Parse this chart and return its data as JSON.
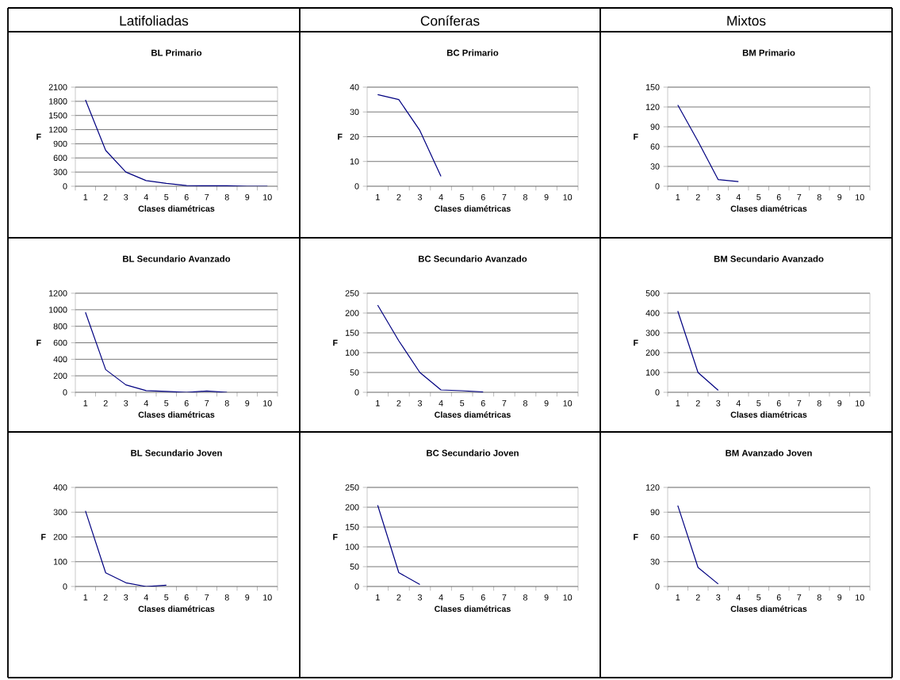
{
  "chart_data": [
    {
      "type": "line",
      "title": "BL Primario",
      "xlabel": "Clases diamétricas",
      "ylabel": "F",
      "annotations": [
        "Latifoliadas"
      ],
      "categories": [
        "1",
        "2",
        "3",
        "4",
        "5",
        "6",
        "7",
        "8",
        "9",
        "10"
      ],
      "series": [
        {
          "color": "#000080",
          "values": [
            1830,
            760,
            300,
            120,
            60,
            15,
            10,
            10,
            0,
            0
          ]
        }
      ],
      "ylim": [
        0,
        2100
      ],
      "yticks": [
        0,
        300,
        600,
        900,
        1200,
        1500,
        1800,
        2100
      ],
      "grid": "y"
    },
    {
      "type": "line",
      "title": "BC Primario",
      "xlabel": "Clases diamétricas",
      "ylabel": "F",
      "annotations": [
        "Coníferas"
      ],
      "categories": [
        "1",
        "2",
        "3",
        "4",
        "5",
        "6",
        "7",
        "8",
        "9",
        "10"
      ],
      "series": [
        {
          "color": "#000080",
          "values": [
            37,
            35,
            22.5,
            4,
            null,
            null,
            null,
            null,
            null,
            null
          ]
        }
      ],
      "ylim": [
        0,
        40
      ],
      "yticks": [
        0,
        10,
        20,
        30,
        40
      ],
      "grid": "y"
    },
    {
      "type": "line",
      "title": "BM Primario",
      "xlabel": "Clases diamétricas",
      "ylabel": "F",
      "annotations": [
        "Mixtos"
      ],
      "categories": [
        "1",
        "2",
        "3",
        "4",
        "5",
        "6",
        "7",
        "8",
        "9",
        "10"
      ],
      "series": [
        {
          "color": "#000080",
          "values": [
            123,
            68,
            10,
            7,
            null,
            null,
            null,
            null,
            null,
            null
          ]
        }
      ],
      "ylim": [
        0,
        150
      ],
      "yticks": [
        0,
        30,
        60,
        90,
        120,
        150
      ],
      "grid": "y"
    },
    {
      "type": "line",
      "title": "BL Secundario Avanzado",
      "xlabel": "Clases diamétricas",
      "ylabel": "F",
      "categories": [
        "1",
        "2",
        "3",
        "4",
        "5",
        "6",
        "7",
        "8",
        "9",
        "10"
      ],
      "series": [
        {
          "color": "#000080",
          "values": [
            970,
            275,
            90,
            20,
            10,
            0,
            15,
            0,
            null,
            null
          ]
        }
      ],
      "ylim": [
        0,
        1200
      ],
      "yticks": [
        0,
        200,
        400,
        600,
        800,
        1000,
        1200
      ],
      "grid": "y"
    },
    {
      "type": "line",
      "title": "BC Secundario Avanzado",
      "xlabel": "Clases diamétricas",
      "ylabel": "F",
      "categories": [
        "1",
        "2",
        "3",
        "4",
        "5",
        "6",
        "7",
        "8",
        "9",
        "10"
      ],
      "series": [
        {
          "color": "#000080",
          "values": [
            220,
            130,
            50,
            6,
            4,
            1,
            null,
            null,
            null,
            null
          ]
        }
      ],
      "ylim": [
        0,
        250
      ],
      "yticks": [
        0,
        50,
        100,
        150,
        200,
        250
      ],
      "grid": "y"
    },
    {
      "type": "line",
      "title": "BM Secundario Avanzado",
      "xlabel": "Clases diamétricas",
      "ylabel": "F",
      "categories": [
        "1",
        "2",
        "3",
        "4",
        "5",
        "6",
        "7",
        "8",
        "9",
        "10"
      ],
      "series": [
        {
          "color": "#000080",
          "values": [
            410,
            100,
            10,
            null,
            null,
            null,
            null,
            null,
            null,
            null
          ]
        }
      ],
      "ylim": [
        0,
        500
      ],
      "yticks": [
        0,
        100,
        200,
        300,
        400,
        500
      ],
      "grid": "y"
    },
    {
      "type": "line",
      "title": "BL Secundario Joven",
      "xlabel": "Clases diamétricas",
      "ylabel": "F",
      "categories": [
        "1",
        "2",
        "3",
        "4",
        "5",
        "6",
        "7",
        "8",
        "9",
        "10"
      ],
      "series": [
        {
          "color": "#000080",
          "values": [
            305,
            55,
            15,
            0,
            5,
            null,
            null,
            null,
            null,
            null
          ]
        }
      ],
      "ylim": [
        0,
        400
      ],
      "yticks": [
        0,
        100,
        200,
        300,
        400
      ],
      "grid": "y"
    },
    {
      "type": "line",
      "title": "BC Secundario Joven",
      "xlabel": "Clases diamétricas",
      "ylabel": "F",
      "categories": [
        "1",
        "2",
        "3",
        "4",
        "5",
        "6",
        "7",
        "8",
        "9",
        "10"
      ],
      "series": [
        {
          "color": "#000080",
          "values": [
            205,
            35,
            5,
            null,
            null,
            null,
            null,
            null,
            null,
            null
          ]
        }
      ],
      "ylim": [
        0,
        250
      ],
      "yticks": [
        0,
        50,
        100,
        150,
        200,
        250
      ],
      "grid": "y"
    },
    {
      "type": "line",
      "title": "BM Avanzado Joven",
      "xlabel": "Clases diamétricas",
      "ylabel": "F",
      "categories": [
        "1",
        "2",
        "3",
        "4",
        "5",
        "6",
        "7",
        "8",
        "9",
        "10"
      ],
      "series": [
        {
          "color": "#000080",
          "values": [
            98,
            23,
            3,
            null,
            null,
            null,
            null,
            null,
            null,
            null
          ]
        }
      ],
      "ylim": [
        0,
        120
      ],
      "yticks": [
        0,
        30,
        60,
        90,
        120
      ],
      "grid": "y"
    }
  ]
}
